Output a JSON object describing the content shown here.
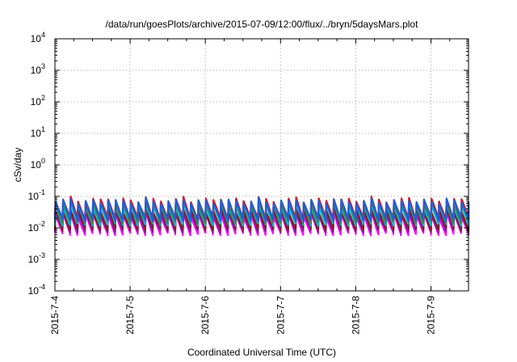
{
  "chart_data": {
    "type": "line",
    "title": "/data/run/goesPlots/archive/2015-07-09/12:00/flux/../bryn/5daysMars.plot",
    "xlabel": "Coordinated Universal Time (UTC)",
    "ylabel": "cSv/day",
    "xlim": [
      "2015-07-04",
      "2015-07-09 12:00"
    ],
    "ylim": [
      0.0001,
      10000
    ],
    "yscale": "log",
    "grid": true,
    "x_tick_labels": [
      "2015-7-4",
      "2015-7-5",
      "2015-7-6",
      "2015-7-7",
      "2015-7-8",
      "2015-7-9"
    ],
    "y_tick_labels": [
      {
        "base": "10",
        "exp": "4"
      },
      {
        "base": "10",
        "exp": "3"
      },
      {
        "base": "10",
        "exp": "2"
      },
      {
        "base": "10",
        "exp": "1"
      },
      {
        "base": "10",
        "exp": "0"
      },
      {
        "base": "10",
        "exp": "-1"
      },
      {
        "base": "10",
        "exp": "-2"
      },
      {
        "base": "10",
        "exp": "-3"
      },
      {
        "base": "10",
        "exp": "-4"
      }
    ],
    "sawtooth_period_hours": 2.4,
    "series": [
      {
        "color": "#ff00ff",
        "peak": 0.025,
        "trough": 0.0065
      },
      {
        "color": "#7b1fa2",
        "peak": 0.03,
        "trough": 0.008
      },
      {
        "color": "#8b1a1a",
        "peak": 0.035,
        "trough": 0.0095
      },
      {
        "color": "#00bcd4",
        "peak": 0.05,
        "trough": 0.013
      },
      {
        "color": "#2e8b57",
        "peak": 0.06,
        "trough": 0.016
      },
      {
        "color": "#ff0000",
        "peak": 0.075,
        "trough": 0.02
      },
      {
        "color": "#1e5fd8",
        "peak": 0.07,
        "trough": 0.019
      }
    ]
  }
}
